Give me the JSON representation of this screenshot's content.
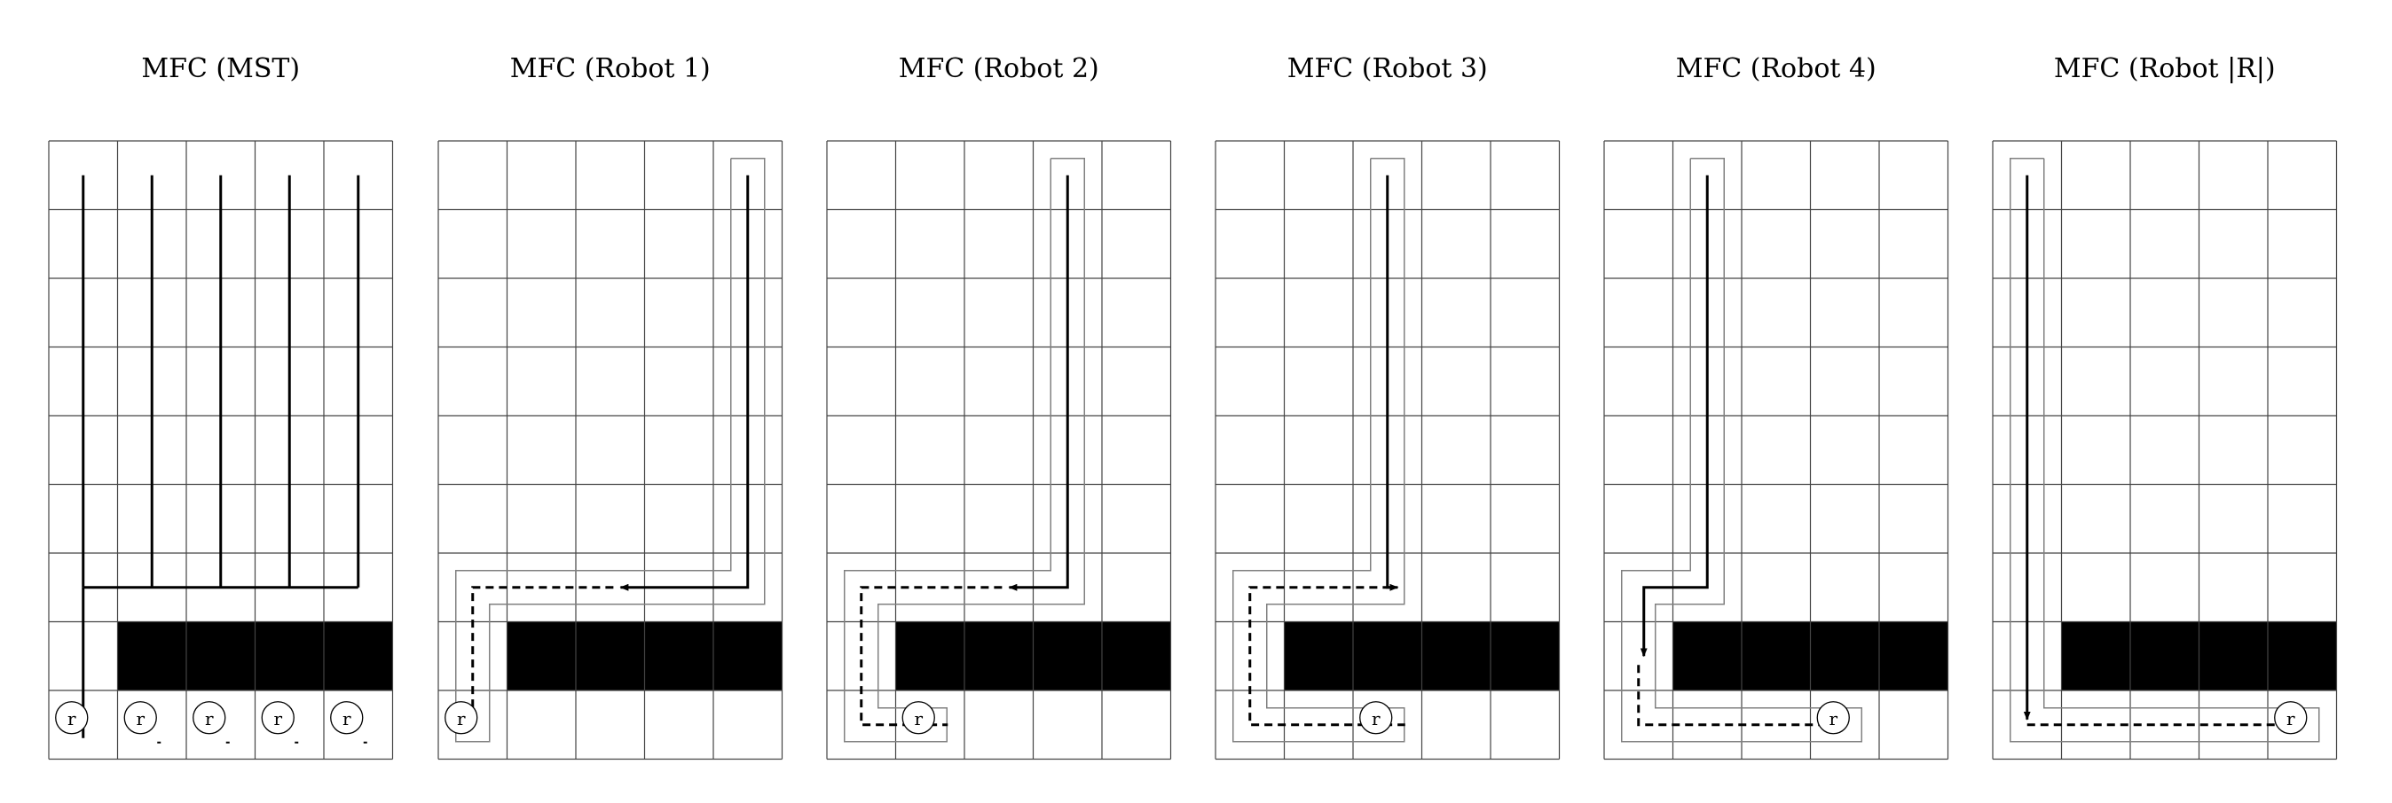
{
  "panels": [
    {
      "title": "MFC (MST)",
      "id": "mst",
      "robot_label": "r"
    },
    {
      "title": "MFC (Robot 1)",
      "id": "robot-1",
      "robot_label": "r"
    },
    {
      "title": "MFC (Robot 2)",
      "id": "robot-2",
      "robot_label": "r"
    },
    {
      "title": "MFC (Robot 3)",
      "id": "robot-3",
      "robot_label": "r"
    },
    {
      "title": "MFC (Robot 4)",
      "id": "robot-4",
      "robot_label": "r"
    },
    {
      "title": "MFC (Robot |R|)",
      "id": "robot-R",
      "robot_label": "r"
    }
  ],
  "grid": {
    "columns": 5,
    "rows": 9,
    "obstacle_row": 8,
    "obstacle_cols": [
      2,
      5
    ]
  },
  "colors": {
    "line": "#000000",
    "offset_path": "#808080",
    "obstacle": "#000000",
    "background": "#ffffff"
  }
}
